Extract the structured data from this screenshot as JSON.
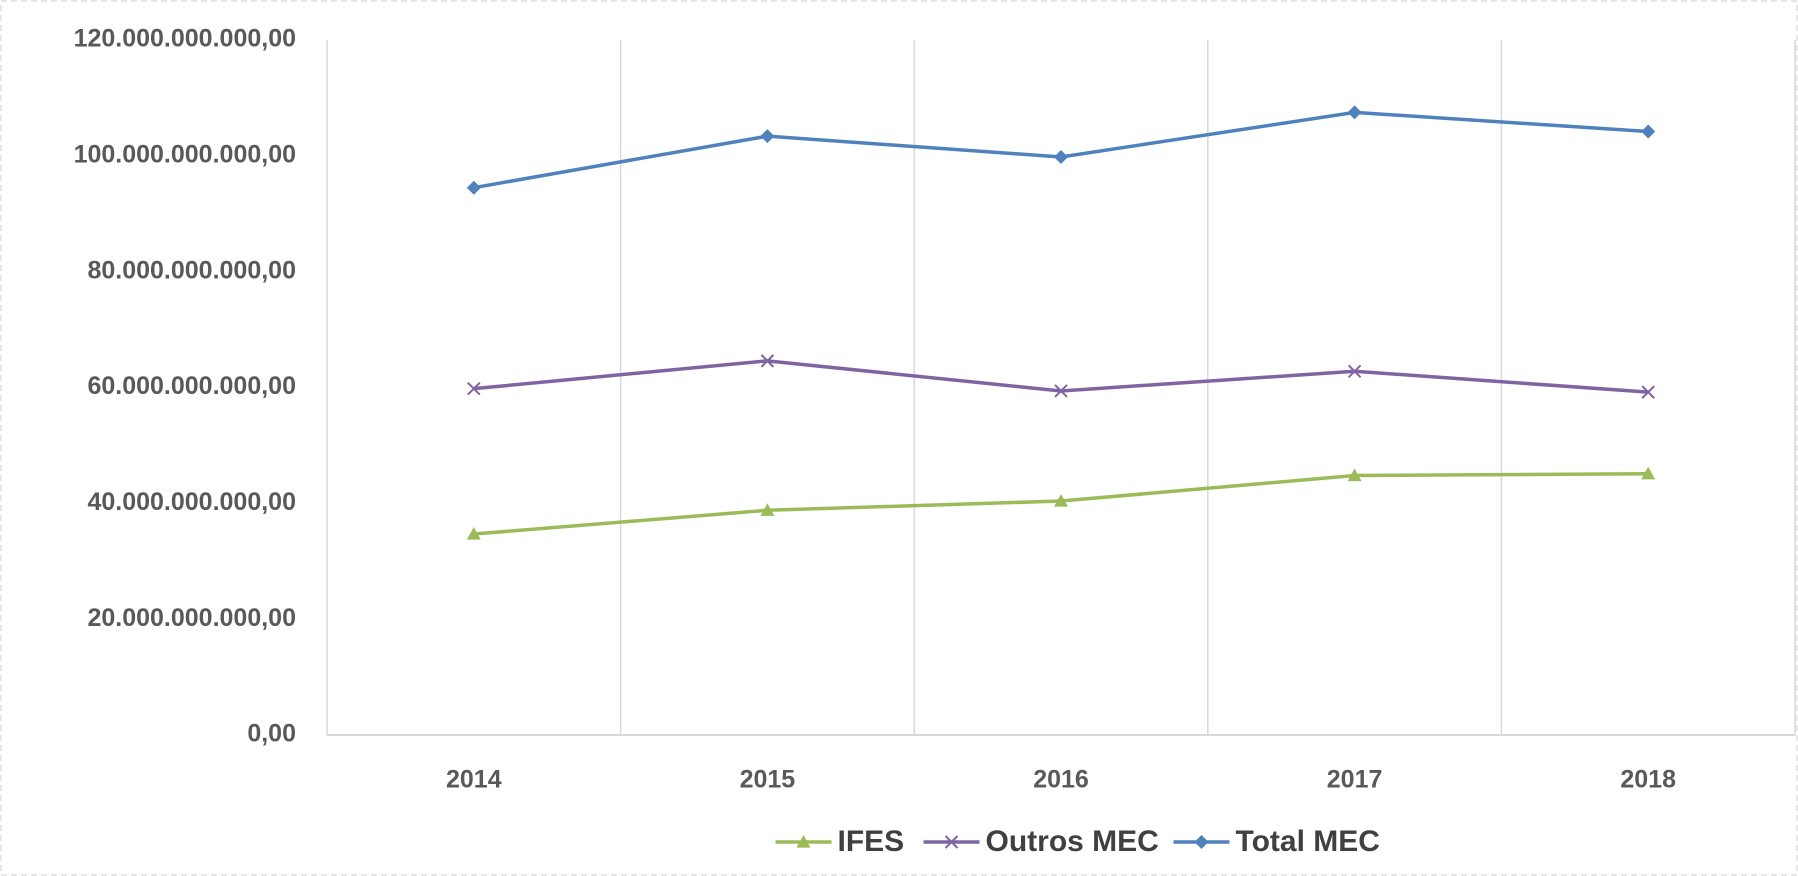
{
  "chart_data": {
    "type": "line",
    "categories": [
      "2014",
      "2015",
      "2016",
      "2017",
      "2018"
    ],
    "series": [
      {
        "name": "IFES",
        "color": "#9bbb59",
        "marker": "triangle",
        "values": [
          34700000000,
          38800000000,
          40400000000,
          44800000000,
          45100000000
        ]
      },
      {
        "name": "Outros MEC",
        "color": "#8064a2",
        "marker": "x",
        "values": [
          59800000000,
          64600000000,
          59400000000,
          62800000000,
          59200000000
        ]
      },
      {
        "name": "Total MEC",
        "color": "#4f81bd",
        "marker": "diamond",
        "values": [
          94500000000,
          103400000000,
          99800000000,
          107500000000,
          104200000000
        ]
      }
    ],
    "ylim": [
      0,
      120000000000
    ],
    "yticks": [
      {
        "value": 0,
        "label": "0,00"
      },
      {
        "value": 20000000000,
        "label": "20.000.000.000,00"
      },
      {
        "value": 40000000000,
        "label": "40.000.000.000,00"
      },
      {
        "value": 60000000000,
        "label": "60.000.000.000,00"
      },
      {
        "value": 80000000000,
        "label": "80.000.000.000,00"
      },
      {
        "value": 100000000000,
        "label": "100.000.000.000,00"
      },
      {
        "value": 120000000000,
        "label": "120.000.000.000,00"
      }
    ],
    "grid": "vertical",
    "legend": "bottom"
  }
}
